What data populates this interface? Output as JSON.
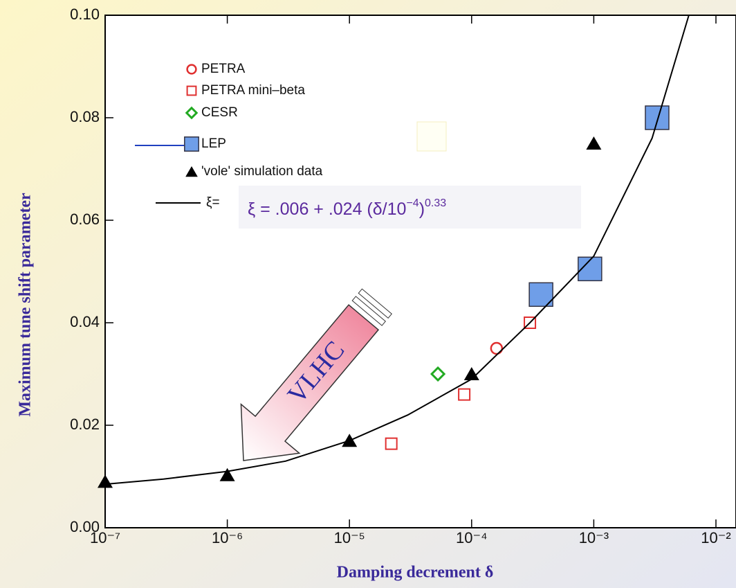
{
  "chart_data": {
    "type": "scatter",
    "x_label": "Damping decrement δ",
    "y_label": "Maximum tune shift parameter",
    "xscale": "log",
    "xlim": [
      1e-07,
      0.01
    ],
    "ylim": [
      0,
      0.1
    ],
    "xticks": [
      {
        "value": 1e-07,
        "label": "10⁻⁷"
      },
      {
        "value": 1e-06,
        "label": "10⁻⁶"
      },
      {
        "value": 1e-05,
        "label": "10⁻⁵"
      },
      {
        "value": 0.0001,
        "label": "10⁻⁴"
      },
      {
        "value": 0.001,
        "label": "10⁻³"
      },
      {
        "value": 0.01,
        "label": "10⁻²"
      }
    ],
    "yticks": [
      {
        "value": 0,
        "label": "0.00"
      },
      {
        "value": 0.02,
        "label": "0.02"
      },
      {
        "value": 0.04,
        "label": "0.04"
      },
      {
        "value": 0.06,
        "label": "0.06"
      },
      {
        "value": 0.08,
        "label": "0.08"
      },
      {
        "value": 0.1,
        "label": "0.10"
      }
    ],
    "series": [
      {
        "name": "PETRA",
        "marker": "circle",
        "color": "#e03030",
        "x": [
          0.00016
        ],
        "values": [
          0.035
        ]
      },
      {
        "name": "PETRA mini–beta",
        "marker": "open-square",
        "color": "#e03030",
        "x": [
          2.2e-05,
          8.7e-05,
          0.0003
        ],
        "values": [
          0.0164,
          0.026,
          0.04
        ]
      },
      {
        "name": "CESR",
        "marker": "diamond",
        "color": "#22aa22",
        "x": [
          5.3e-05
        ],
        "values": [
          0.03
        ]
      },
      {
        "name": "LEP",
        "marker": "filled-square",
        "color": "#6f9ee8",
        "x": [
          0.00037,
          0.00093,
          0.0033
        ],
        "values": [
          0.0455,
          0.0505,
          0.08
        ]
      },
      {
        "name": "'vole' simulation data",
        "marker": "triangle",
        "color": "#000000",
        "x": [
          1e-07,
          1e-06,
          1e-05,
          0.0001,
          0.001
        ],
        "values": [
          0.009,
          0.0103,
          0.017,
          0.03,
          0.075
        ]
      },
      {
        "name": "ξ=",
        "marker": "line",
        "color": "#000000",
        "x": [
          1e-07,
          3e-07,
          1e-06,
          3e-06,
          1e-05,
          3e-05,
          0.0001,
          0.0003,
          0.001,
          0.003,
          0.006
        ],
        "values": [
          0.0085,
          0.0095,
          0.011,
          0.013,
          0.017,
          0.022,
          0.029,
          0.04,
          0.053,
          0.076,
          0.1
        ]
      }
    ],
    "formula": {
      "main": "ξ = .006 + .024 (δ/10",
      "exp1": "−4",
      "close": ")",
      "exp2": "0.33"
    },
    "arrow_label": "VLHC"
  }
}
